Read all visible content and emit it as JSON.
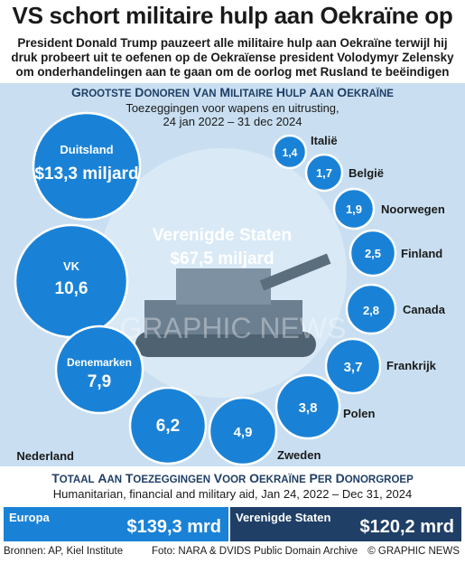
{
  "title": "VS schort militaire hulp aan Oekraïne op",
  "subtitle": "President Donald Trump pauzeert alle militaire hulp aan Oekraïne terwijl hij druk probeert uit te oefenen op de Oekraïense president Volodymyr Zelensky om onderhandelingen aan te gaan om de oorlog met Rusland te beëindigen",
  "panel": {
    "heading": "Grootste donoren van militaire hulp aan Oekraïne",
    "sub_line1": "Toezeggingen voor wapens en uitrusting,",
    "sub_line2": "24 jan 2022 – 31 dec 2024"
  },
  "chart_data": {
    "type": "bubble",
    "unit": "miljard",
    "items": [
      {
        "name": "Verenigde Staten",
        "value": 67.5,
        "display": "$67,5 miljard",
        "color": "#d9e9f6"
      },
      {
        "name": "Duitsland",
        "value": 13.3,
        "display": "$13,3 miljard",
        "color": "#1a82d6"
      },
      {
        "name": "VK",
        "value": 10.6,
        "display": "10,6",
        "color": "#1a82d6"
      },
      {
        "name": "Denemarken",
        "value": 7.9,
        "display": "7,9",
        "color": "#1a82d6"
      },
      {
        "name": "Nederland",
        "value": 6.2,
        "display": "6,2",
        "color": "#1a82d6"
      },
      {
        "name": "Zweden",
        "value": 4.9,
        "display": "4,9",
        "color": "#1a82d6"
      },
      {
        "name": "Polen",
        "value": 3.8,
        "display": "3,8",
        "color": "#1a82d6"
      },
      {
        "name": "Frankrijk",
        "value": 3.7,
        "display": "3,7",
        "color": "#1a82d6"
      },
      {
        "name": "Canada",
        "value": 2.8,
        "display": "2,8",
        "color": "#1a82d6"
      },
      {
        "name": "Finland",
        "value": 2.5,
        "display": "2,5",
        "color": "#1a82d6"
      },
      {
        "name": "Noorwegen",
        "value": 1.9,
        "display": "1,9",
        "color": "#1a82d6"
      },
      {
        "name": "België",
        "value": 1.7,
        "display": "1,7",
        "color": "#1a82d6"
      },
      {
        "name": "Italië",
        "value": 1.4,
        "display": "1,4",
        "color": "#1a82d6"
      }
    ]
  },
  "watermark": "GRAPHIC NEWS",
  "totals": {
    "heading": "Totaal aan toezeggingen voor Oekraïne per donorgroep",
    "sub": "Humanitarian, financial and military aid, Jan 24, 2022 – Dec 31, 2024",
    "groups": [
      {
        "label": "Europa",
        "value_text": "$139,3 mrd",
        "value": 139.3,
        "color": "#1a82d6"
      },
      {
        "label": "Verenigde Staten",
        "value_text": "$120,2 mrd",
        "value": 120.2,
        "color": "#1f3f66"
      }
    ]
  },
  "footer": {
    "sources": "Bronnen: AP, Kiel Institute",
    "photo": "Foto: NARA & DVIDS Public Domain Archive",
    "credit": "© GRAPHIC NEWS"
  }
}
